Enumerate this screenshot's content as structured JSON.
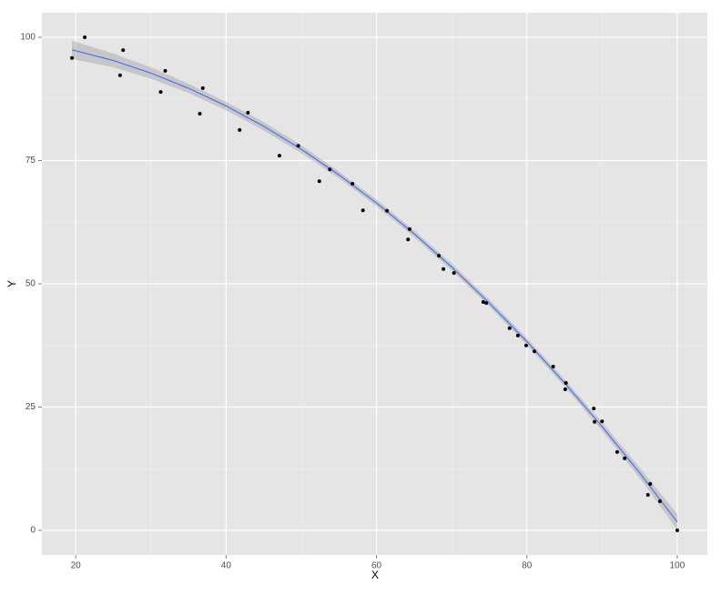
{
  "chart_data": {
    "type": "scatter",
    "xlabel": "X",
    "ylabel": "Y",
    "xlim": [
      15.5,
      104.0
    ],
    "ylim": [
      -4.98,
      104.98
    ],
    "xticks": [
      20,
      40,
      60,
      80,
      100
    ],
    "yticks": [
      0,
      25,
      50,
      75,
      100
    ],
    "xminor": [
      30,
      50,
      70,
      90
    ],
    "yminor": [
      12.5,
      37.5,
      62.5,
      87.5
    ],
    "grid": true,
    "points": {
      "color": "#000000",
      "x": [
        19.5,
        21.2,
        25.9,
        26.3,
        31.3,
        31.9,
        36.5,
        36.9,
        41.8,
        42.9,
        47.1,
        49.6,
        52.4,
        53.8,
        56.8,
        58.2,
        61.4,
        64.2,
        64.4,
        68.3,
        68.9,
        70.3,
        74.2,
        74.6,
        77.7,
        78.8,
        79.9,
        81.0,
        83.5,
        85.2,
        85.1,
        88.9,
        89.0,
        90.0,
        92.0,
        93.0,
        96.4,
        96.1,
        97.7,
        100
      ],
      "y": [
        95.8,
        100,
        92.3,
        97.4,
        88.9,
        93.2,
        84.5,
        89.7,
        81.2,
        84.7,
        76.0,
        78.0,
        70.8,
        73.2,
        70.3,
        64.9,
        64.8,
        59.0,
        61.1,
        55.7,
        53.0,
        52.2,
        46.3,
        46.1,
        41.0,
        39.5,
        37.5,
        36.3,
        33.2,
        29.9,
        28.6,
        24.7,
        22.0,
        22.1,
        15.9,
        14.6,
        9.4,
        7.2,
        5.9,
        0
      ]
    },
    "fit": {
      "color": "#3366ff",
      "band_color": "#999999",
      "x": [
        19.5,
        25,
        30,
        35,
        40,
        45,
        50,
        55,
        60,
        65,
        70,
        75,
        80,
        85,
        90,
        95,
        100
      ],
      "y": [
        97.47,
        95.29,
        92.74,
        89.67,
        86.07,
        81.95,
        77.29,
        72.11,
        66.4,
        60.16,
        53.39,
        46.09,
        38.28,
        29.92,
        21.04,
        11.63,
        1.7
      ],
      "lower": [
        95.6,
        93.9,
        91.6,
        88.7,
        85.2,
        81.1,
        76.5,
        71.4,
        65.7,
        59.5,
        52.7,
        45.4,
        37.6,
        29.2,
        20.2,
        10.6,
        0.1
      ],
      "upper": [
        99.3,
        96.7,
        93.9,
        90.6,
        86.9,
        82.8,
        78.1,
        72.8,
        67.1,
        60.8,
        54.1,
        46.8,
        39.0,
        30.6,
        21.9,
        12.7,
        3.3
      ]
    }
  }
}
